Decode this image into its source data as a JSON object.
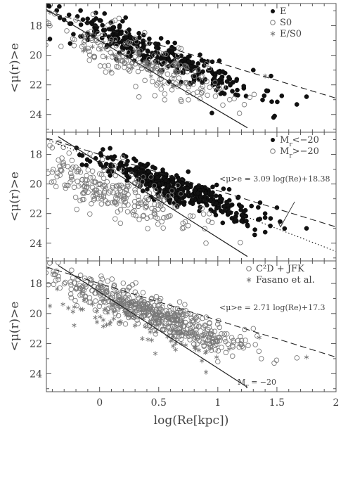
{
  "chart_data": [
    {
      "type": "scatter",
      "ylabel": "<μ(r)>e",
      "xlim": [
        -0.45,
        2.0
      ],
      "ylim": [
        25.2,
        16.5
      ],
      "yticks": [
        "18",
        "20",
        "22",
        "24"
      ],
      "legend": {
        "position": "top-right",
        "entries": [
          {
            "label": "E",
            "marker": "filled-circle"
          },
          {
            "label": "S0",
            "marker": "open-circle"
          },
          {
            "label": "E/S0",
            "marker": "star"
          }
        ]
      },
      "lines": [
        {
          "style": "dashed",
          "x": [
            -0.45,
            2.0
          ],
          "y": [
            17.0,
            22.9
          ]
        },
        {
          "style": "solid",
          "x": [
            -0.45,
            1.25
          ],
          "y": [
            16.9,
            24.9
          ]
        }
      ],
      "series": [
        {
          "name": "E",
          "marker": "filled-circle",
          "center": [
            0.5,
            20.0
          ],
          "slope": 3.2,
          "spread": [
            0.42,
            0.55
          ],
          "count": 330,
          "seed": 11,
          "points": [
            [
              -0.42,
              18.9
            ],
            [
              -0.3,
              17.6
            ],
            [
              1.3,
              21.0
            ],
            [
              1.45,
              21.4
            ],
            [
              1.75,
              22.8
            ],
            [
              0.95,
              23.9
            ]
          ]
        },
        {
          "name": "S0",
          "marker": "open-circle",
          "center": [
            0.35,
            20.4
          ],
          "slope": 2.8,
          "spread": [
            0.38,
            0.8
          ],
          "count": 200,
          "seed": 23,
          "points": [
            [
              -0.38,
              17.2
            ],
            [
              -0.42,
              18.0
            ],
            [
              1.1,
              23.0
            ],
            [
              1.0,
              22.4
            ]
          ]
        },
        {
          "name": "E/S0",
          "marker": "star",
          "center": [
            0.2,
            20.3
          ],
          "slope": 3.0,
          "spread": [
            0.3,
            0.5
          ],
          "count": 30,
          "seed": 31,
          "points": [
            [
              -0.42,
              17.1
            ],
            [
              1.4,
              21.4
            ]
          ]
        }
      ]
    },
    {
      "type": "scatter",
      "ylabel": "<μ(r)>e",
      "xlim": [
        -0.45,
        2.0
      ],
      "ylim": [
        25.2,
        16.5
      ],
      "yticks": [
        "18",
        "20",
        "22",
        "24"
      ],
      "legend": {
        "position": "top-right",
        "entries": [
          {
            "label": "Mr<−20",
            "marker": "filled-circle"
          },
          {
            "label": "Mr>−20",
            "marker": "open-circle"
          }
        ]
      },
      "annotation": "<μ>e = 3.09 log(Re)+18.38",
      "lines": [
        {
          "style": "dashed",
          "x": [
            -0.45,
            2.0
          ],
          "y": [
            16.9,
            22.9
          ]
        },
        {
          "style": "solid",
          "x": [
            -0.35,
            1.25
          ],
          "y": [
            16.8,
            24.9
          ]
        },
        {
          "style": "dotted",
          "x": [
            -0.45,
            2.0
          ],
          "y": [
            16.99,
            24.56
          ]
        },
        {
          "style": "arrow",
          "x": [
            1.65,
            1.53
          ],
          "y": [
            21.2,
            22.9
          ]
        }
      ],
      "series": [
        {
          "name": "Mr<−20",
          "marker": "filled-circle",
          "center": [
            0.65,
            20.3
          ],
          "slope": 3.0,
          "spread": [
            0.35,
            0.5
          ],
          "count": 430,
          "seed": 41,
          "points": [
            [
              1.5,
              21.6
            ],
            [
              1.75,
              23.0
            ],
            [
              1.4,
              22.0
            ],
            [
              1.2,
              22.5
            ]
          ]
        },
        {
          "name": "Mr>−20",
          "marker": "open-circle",
          "center": [
            0.15,
            20.5
          ],
          "slope": 2.6,
          "spread": [
            0.38,
            0.85
          ],
          "count": 260,
          "seed": 53,
          "points": [
            [
              -0.42,
              17.4
            ],
            [
              -0.4,
              19.2
            ],
            [
              0.9,
              24.0
            ],
            [
              0.7,
              23.0
            ]
          ]
        }
      ]
    },
    {
      "type": "scatter",
      "ylabel": "<μ(r)>e",
      "xlabel": "log(Re[kpc])",
      "xlim": [
        -0.45,
        2.0
      ],
      "ylim": [
        25.2,
        16.5
      ],
      "xticks": [
        "0",
        "0.5",
        "1",
        "1.5",
        "2"
      ],
      "yticks": [
        "18",
        "20",
        "22",
        "24"
      ],
      "legend": {
        "position": "top-right",
        "entries": [
          {
            "label": "C²D + JFK",
            "marker": "open-circle"
          },
          {
            "label": "Fasano et al.",
            "marker": "star"
          }
        ]
      },
      "annotation": "<μ>e = 2.71 log(Re)+17.3",
      "line_label": "Mr = −20",
      "lines": [
        {
          "style": "dashed",
          "x": [
            -0.45,
            2.0
          ],
          "y": [
            16.9,
            22.9
          ]
        },
        {
          "style": "solid",
          "x": [
            -0.35,
            1.25
          ],
          "y": [
            16.8,
            24.9
          ]
        }
      ],
      "series": [
        {
          "name": "C²D + JFK",
          "marker": "open-circle",
          "center": [
            0.45,
            20.0
          ],
          "slope": 2.9,
          "spread": [
            0.4,
            0.55
          ],
          "count": 520,
          "seed": 61,
          "points": [
            [
              -0.38,
              17.4
            ],
            [
              1.3,
              21.0
            ],
            [
              1.2,
              21.8
            ],
            [
              1.0,
              23.2
            ]
          ]
        },
        {
          "name": "Fasano et al.",
          "marker": "star",
          "center": [
            0.35,
            20.6
          ],
          "slope": 2.8,
          "spread": [
            0.4,
            0.75
          ],
          "count": 90,
          "seed": 71,
          "points": [
            [
              -0.42,
              19.5
            ],
            [
              1.35,
              21.6
            ],
            [
              1.75,
              22.9
            ],
            [
              0.9,
              23.9
            ]
          ]
        }
      ]
    }
  ]
}
